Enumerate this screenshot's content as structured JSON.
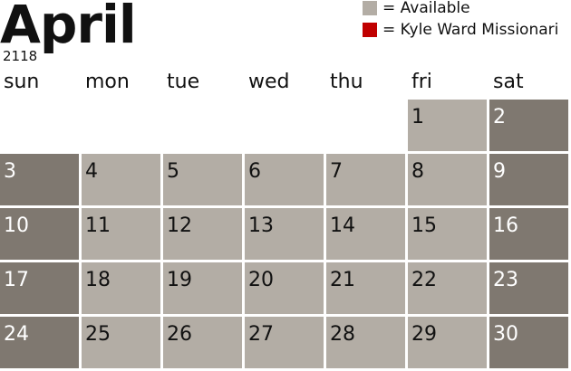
{
  "header": {
    "title": "April",
    "year": "2118"
  },
  "legend": [
    {
      "label": "= Available",
      "color": "#b3ada5"
    },
    {
      "label": "= Kyle Ward Missionari",
      "color": "#c00000"
    }
  ],
  "weekdays": [
    "sun",
    "mon",
    "tue",
    "wed",
    "thu",
    "fri",
    "sat"
  ],
  "weeks": [
    [
      null,
      null,
      null,
      null,
      null,
      1,
      2
    ],
    [
      3,
      4,
      5,
      6,
      7,
      8,
      9
    ],
    [
      10,
      11,
      12,
      13,
      14,
      15,
      16
    ],
    [
      17,
      18,
      19,
      20,
      21,
      22,
      23
    ],
    [
      24,
      25,
      26,
      27,
      28,
      29,
      30
    ]
  ]
}
